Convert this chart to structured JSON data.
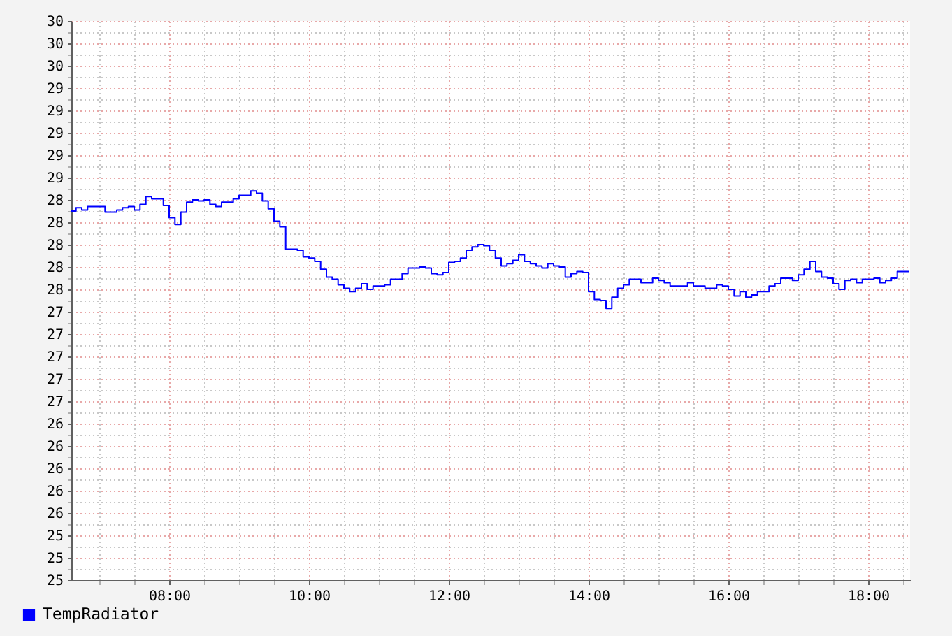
{
  "chart_data": {
    "type": "step",
    "x": [
      6.6,
      6.667,
      6.75,
      6.833,
      7.083,
      7.25,
      7.333,
      7.417,
      7.5,
      7.583,
      7.667,
      7.75,
      7.917,
      8,
      8.083,
      8.167,
      8.25,
      8.333,
      8.417,
      8.5,
      8.583,
      8.667,
      8.75,
      8.917,
      9,
      9.167,
      9.25,
      9.333,
      9.417,
      9.5,
      9.583,
      9.667,
      9.833,
      9.917,
      10,
      10.083,
      10.167,
      10.25,
      10.333,
      10.417,
      10.5,
      10.583,
      10.667,
      10.75,
      10.833,
      10.917,
      11.083,
      11.167,
      11.333,
      11.417,
      11.583,
      11.667,
      11.75,
      11.833,
      11.917,
      12,
      12.083,
      12.167,
      12.25,
      12.333,
      12.417,
      12.5,
      12.583,
      12.667,
      12.75,
      12.833,
      12.917,
      13,
      13.083,
      13.167,
      13.25,
      13.333,
      13.417,
      13.5,
      13.583,
      13.667,
      13.75,
      13.833,
      13.917,
      14,
      14.083,
      14.167,
      14.25,
      14.333,
      14.417,
      14.5,
      14.583,
      14.75,
      14.917,
      15,
      15.083,
      15.167,
      15.417,
      15.5,
      15.667,
      15.833,
      15.917,
      16,
      16.083,
      16.167,
      16.25,
      16.333,
      16.417,
      16.583,
      16.667,
      16.75,
      16.917,
      17,
      17.083,
      17.167,
      17.25,
      17.333,
      17.417,
      17.5,
      17.583,
      17.667,
      17.75,
      17.833,
      17.917,
      18.083,
      18.167,
      18.25,
      18.333,
      18.417,
      18.583
    ],
    "series": [
      {
        "name": "TempRadiator",
        "color": "#0000ff",
        "values": [
          28.3,
          28.33,
          28.31,
          28.34,
          28.29,
          28.31,
          28.33,
          28.34,
          28.31,
          28.36,
          28.43,
          28.41,
          28.35,
          28.24,
          28.18,
          28.29,
          28.38,
          28.4,
          28.39,
          28.4,
          28.36,
          28.34,
          28.38,
          28.41,
          28.44,
          28.48,
          28.46,
          28.39,
          28.32,
          28.21,
          28.16,
          27.96,
          27.95,
          27.89,
          27.88,
          27.85,
          27.78,
          27.71,
          27.69,
          27.64,
          27.61,
          27.58,
          27.61,
          27.65,
          27.6,
          27.63,
          27.64,
          27.69,
          27.74,
          27.79,
          27.8,
          27.79,
          27.74,
          27.73,
          27.75,
          27.84,
          27.85,
          27.88,
          27.95,
          27.98,
          28.0,
          27.99,
          27.95,
          27.88,
          27.81,
          27.83,
          27.86,
          27.91,
          27.85,
          27.83,
          27.81,
          27.79,
          27.83,
          27.81,
          27.8,
          27.71,
          27.74,
          27.76,
          27.75,
          27.58,
          27.51,
          27.5,
          27.43,
          27.53,
          27.61,
          27.64,
          27.69,
          27.66,
          27.7,
          27.68,
          27.66,
          27.63,
          27.66,
          27.63,
          27.61,
          27.64,
          27.63,
          27.6,
          27.54,
          27.58,
          27.53,
          27.55,
          27.58,
          27.63,
          27.65,
          27.7,
          27.68,
          27.73,
          27.78,
          27.85,
          27.76,
          27.71,
          27.7,
          27.65,
          27.6,
          27.68,
          27.69,
          27.66,
          27.69,
          27.7,
          27.66,
          27.68,
          27.7,
          27.76,
          27.76
        ]
      }
    ],
    "xlim": [
      6.6,
      18.6
    ],
    "ylim": [
      25,
      30
    ],
    "xticks": [
      {
        "value": 7,
        "label": null
      },
      {
        "value": 7.5,
        "label": null
      },
      {
        "value": 8,
        "label": "08:00"
      },
      {
        "value": 8.5,
        "label": null
      },
      {
        "value": 9,
        "label": null
      },
      {
        "value": 9.5,
        "label": null
      },
      {
        "value": 10,
        "label": "10:00"
      },
      {
        "value": 10.5,
        "label": null
      },
      {
        "value": 11,
        "label": null
      },
      {
        "value": 11.5,
        "label": null
      },
      {
        "value": 12,
        "label": "12:00"
      },
      {
        "value": 12.5,
        "label": null
      },
      {
        "value": 13,
        "label": null
      },
      {
        "value": 13.5,
        "label": null
      },
      {
        "value": 14,
        "label": "14:00"
      },
      {
        "value": 14.5,
        "label": null
      },
      {
        "value": 15,
        "label": null
      },
      {
        "value": 15.5,
        "label": null
      },
      {
        "value": 16,
        "label": "16:00"
      },
      {
        "value": 16.5,
        "label": null
      },
      {
        "value": 17,
        "label": null
      },
      {
        "value": 17.5,
        "label": null
      },
      {
        "value": 18,
        "label": "18:00"
      },
      {
        "value": 18.5,
        "label": null
      }
    ],
    "yticks": [
      25,
      {
        "value": 25.1,
        "label": null
      },
      {
        "value": 25.2,
        "label": "25"
      },
      {
        "value": 25.3,
        "label": null
      },
      {
        "value": 25.4,
        "label": "25"
      },
      {
        "value": 25.5,
        "label": null
      },
      {
        "value": 25.6,
        "label": "26"
      },
      {
        "value": 25.7,
        "label": null
      },
      {
        "value": 25.8,
        "label": "26"
      },
      {
        "value": 25.9,
        "label": null
      },
      26,
      {
        "value": 26.1,
        "label": null
      },
      {
        "value": 26.2,
        "label": "26"
      },
      {
        "value": 26.3,
        "label": null
      },
      {
        "value": 26.4,
        "label": "26"
      },
      {
        "value": 26.5,
        "label": null
      },
      {
        "value": 26.6,
        "label": "27"
      },
      {
        "value": 26.7,
        "label": null
      },
      {
        "value": 26.8,
        "label": "27"
      },
      {
        "value": 26.9,
        "label": null
      },
      27,
      {
        "value": 27.1,
        "label": null
      },
      {
        "value": 27.2,
        "label": "27"
      },
      {
        "value": 27.3,
        "label": null
      },
      {
        "value": 27.4,
        "label": "27"
      },
      {
        "value": 27.5,
        "label": null
      },
      {
        "value": 27.6,
        "label": "28"
      },
      {
        "value": 27.7,
        "label": null
      },
      {
        "value": 27.8,
        "label": "28"
      },
      {
        "value": 27.9,
        "label": null
      },
      28,
      {
        "value": 28.1,
        "label": null
      },
      {
        "value": 28.2,
        "label": "28"
      },
      {
        "value": 28.3,
        "label": null
      },
      {
        "value": 28.4,
        "label": "28"
      },
      {
        "value": 28.5,
        "label": null
      },
      {
        "value": 28.6,
        "label": "29"
      },
      {
        "value": 28.7,
        "label": null
      },
      {
        "value": 28.8,
        "label": "29"
      },
      {
        "value": 28.9,
        "label": null
      },
      29,
      {
        "value": 29.1,
        "label": null
      },
      {
        "value": 29.2,
        "label": "29"
      },
      {
        "value": 29.3,
        "label": null
      },
      {
        "value": 29.4,
        "label": "29"
      },
      {
        "value": 29.5,
        "label": null
      },
      {
        "value": 29.6,
        "label": "30"
      },
      {
        "value": 29.7,
        "label": null
      },
      {
        "value": 29.8,
        "label": "30"
      },
      {
        "value": 29.9,
        "label": null
      },
      30
    ],
    "grid": true,
    "legend": "bottom left",
    "line_style": "solid"
  }
}
